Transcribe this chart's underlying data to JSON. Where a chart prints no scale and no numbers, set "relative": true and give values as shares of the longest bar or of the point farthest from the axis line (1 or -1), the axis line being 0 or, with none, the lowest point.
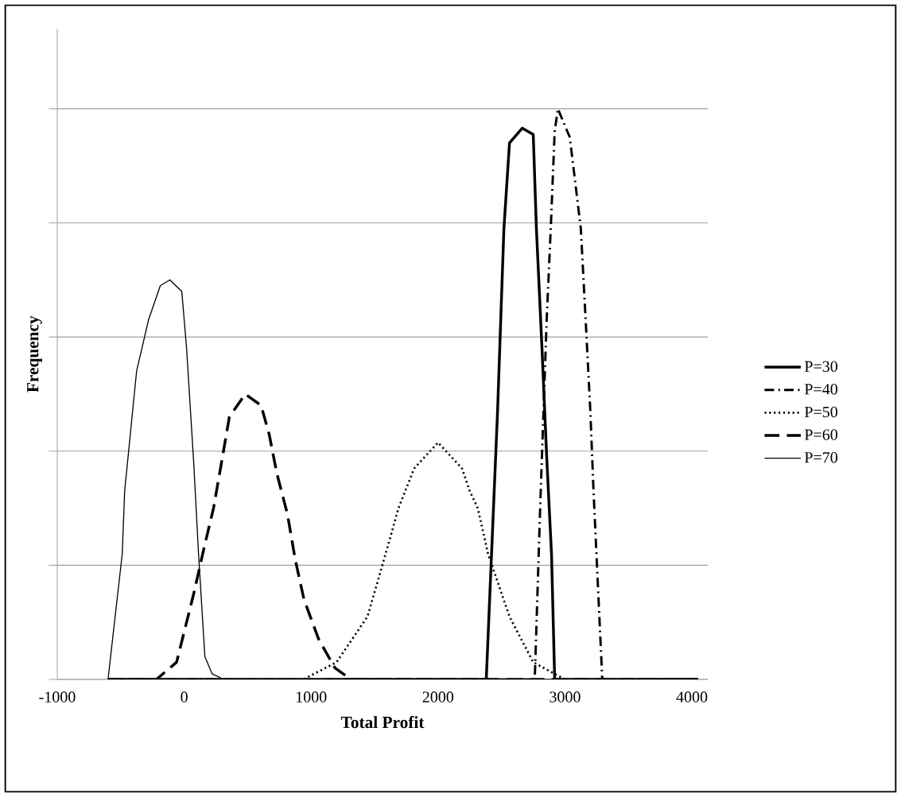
{
  "chart_data": {
    "type": "line",
    "xlabel": "Total Profit",
    "ylabel": "Frequency",
    "relative": true,
    "xlim": [
      -1000,
      4125
    ],
    "xticks": [
      -1000,
      0,
      1000,
      2000,
      3000,
      4000
    ],
    "grid": "y",
    "legend": "right",
    "series": [
      {
        "name": "P=30",
        "color": "#000000",
        "line_style": "solid",
        "x": [
          -600,
          2380,
          2469,
          2519,
          2563,
          2663,
          2750,
          2775,
          2819,
          2856,
          2894,
          2919,
          4050
        ],
        "values": [
          0,
          0,
          0.47,
          0.79,
          0.94,
          0.966,
          0.955,
          0.79,
          0.58,
          0.39,
          0.22,
          0,
          0
        ]
      },
      {
        "name": "P=40",
        "color": "#000000",
        "line_style": "dashdot",
        "x": [
          -600,
          2762,
          2806,
          2831,
          2856,
          2888,
          2919,
          2944,
          3038,
          3125,
          3163,
          3200,
          3225,
          3294,
          4050
        ],
        "values": [
          0,
          0,
          0.31,
          0.47,
          0.63,
          0.79,
          0.96,
          1,
          0.95,
          0.79,
          0.63,
          0.47,
          0.33,
          0,
          0
        ]
      },
      {
        "name": "P=50",
        "color": "#000000",
        "line_style": "dotted",
        "x": [
          -600,
          938,
          1200,
          1444,
          1613,
          1688,
          1813,
          2000,
          2188,
          2250,
          2313,
          2394,
          2563,
          2750,
          3000,
          4050
        ],
        "values": [
          0,
          0,
          0.03,
          0.11,
          0.24,
          0.3,
          0.37,
          0.415,
          0.37,
          0.33,
          0.3,
          0.22,
          0.11,
          0.03,
          0,
          0
        ]
      },
      {
        "name": "P=60",
        "color": "#000000",
        "line_style": "dashed",
        "x": [
          -600,
          -219,
          -60,
          75,
          156,
          231,
          294,
          356,
          481,
          606,
          669,
          731,
          813,
          875,
          944,
          1060,
          1188,
          1313,
          4050
        ],
        "values": [
          0,
          0,
          0.03,
          0.15,
          0.23,
          0.3,
          0.38,
          0.46,
          0.5,
          0.48,
          0.43,
          0.36,
          0.29,
          0.21,
          0.14,
          0.07,
          0.02,
          0,
          0
        ]
      },
      {
        "name": "P=70",
        "color": "#000000",
        "line_style": "solid",
        "x": [
          -600,
          -488,
          -469,
          -375,
          -281,
          -188,
          -113,
          -19,
          19,
          75,
          113,
          163,
          219,
          313,
          4050
        ],
        "values": [
          0,
          0.22,
          0.33,
          0.54,
          0.63,
          0.69,
          0.7,
          0.68,
          0.58,
          0.38,
          0.22,
          0.04,
          0.01,
          0,
          0
        ]
      }
    ]
  }
}
